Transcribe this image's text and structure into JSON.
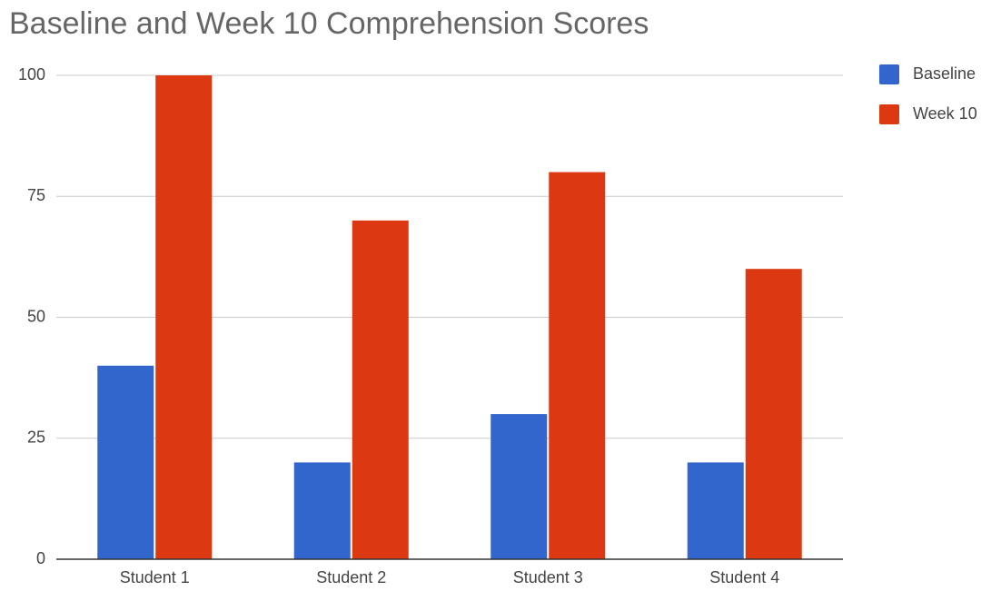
{
  "chart_data": {
    "type": "bar",
    "title": "Baseline and Week 10 Comprehension Scores",
    "categories": [
      "Student 1",
      "Student 2",
      "Student 3",
      "Student 4"
    ],
    "series": [
      {
        "name": "Baseline",
        "color": "#3366cc",
        "values": [
          40,
          20,
          30,
          20
        ]
      },
      {
        "name": "Week 10",
        "color": "#dc3912",
        "values": [
          100,
          70,
          80,
          60
        ]
      }
    ],
    "ylim": [
      0,
      100
    ],
    "yticks": [
      0,
      25,
      50,
      75,
      100
    ],
    "grid": true,
    "legend": "right"
  }
}
